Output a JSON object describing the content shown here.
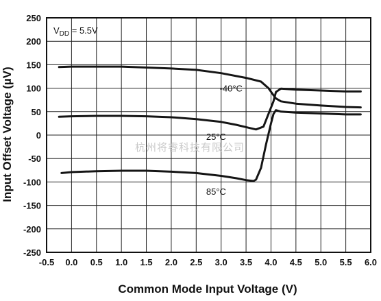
{
  "chart_data": {
    "type": "line",
    "xlabel": "Common Mode Input Voltage (V)",
    "ylabel": "Input Offset Voltage (µV)",
    "xlim": [
      -0.5,
      6.0
    ],
    "ylim": [
      -250,
      250
    ],
    "xticks": [
      "-0.5",
      "0.0",
      "0.5",
      "1.0",
      "1.5",
      "2.0",
      "2.5",
      "3.0",
      "3.5",
      "4.0",
      "4.5",
      "5.0",
      "5.5",
      "6.0"
    ],
    "yticks": [
      "250",
      "200",
      "150",
      "100",
      "50",
      "0",
      "-50",
      "-100",
      "-150",
      "-200",
      "-250"
    ],
    "grid": true,
    "annotation": {
      "prefix": "V",
      "sub": "DD",
      "suffix": " = 5.5V"
    },
    "watermark": "杭州将睿科技有限公司",
    "series": [
      {
        "name": "-40°C",
        "x": [
          -0.25,
          0.0,
          0.5,
          1.0,
          1.5,
          2.0,
          2.5,
          3.0,
          3.5,
          3.8,
          3.95,
          4.05,
          4.1,
          4.2,
          4.5,
          5.0,
          5.5,
          5.8
        ],
        "y": [
          145,
          146,
          146,
          146,
          144,
          142,
          139,
          132,
          122,
          114,
          100,
          85,
          78,
          72,
          67,
          63,
          60,
          59
        ]
      },
      {
        "name": "25°C",
        "x": [
          -0.25,
          0.0,
          0.5,
          1.0,
          1.5,
          2.0,
          2.5,
          3.0,
          3.3,
          3.5,
          3.7,
          3.85,
          3.95,
          4.05,
          4.1,
          4.2,
          4.5,
          5.0,
          5.5,
          5.8
        ],
        "y": [
          39,
          40,
          41,
          41,
          40,
          38,
          34,
          28,
          22,
          17,
          12,
          18,
          45,
          72,
          92,
          99,
          97,
          95,
          93,
          93
        ]
      },
      {
        "name": "85°C",
        "x": [
          -0.2,
          0.0,
          0.5,
          1.0,
          1.5,
          2.0,
          2.5,
          3.0,
          3.3,
          3.5,
          3.65,
          3.7,
          3.8,
          3.9,
          4.0,
          4.05,
          4.1,
          4.2,
          4.5,
          5.0,
          5.5,
          5.8
        ],
        "y": [
          -81,
          -79,
          -77,
          -76,
          -76,
          -78,
          -81,
          -87,
          -92,
          -96,
          -98,
          -95,
          -70,
          -20,
          25,
          45,
          53,
          50,
          48,
          46,
          44,
          44
        ]
      }
    ]
  }
}
